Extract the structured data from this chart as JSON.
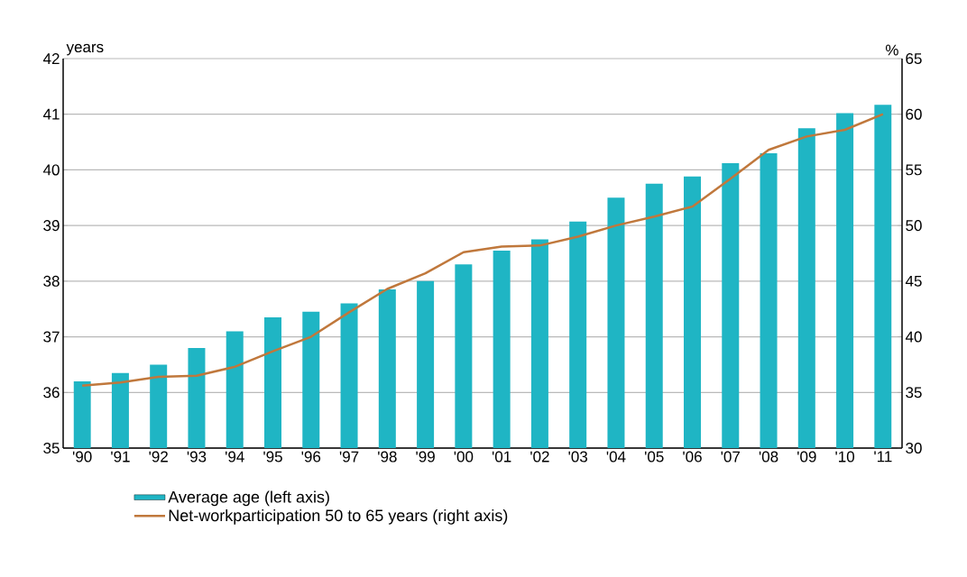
{
  "chart_data": {
    "type": "bar",
    "categories": [
      "'90",
      "'91",
      "'92",
      "'93",
      "'94",
      "'95",
      "'96",
      "'97",
      "'98",
      "'99",
      "'00",
      "'01",
      "'02",
      "'03",
      "'04",
      "'05",
      "'06",
      "'07",
      "'08",
      "'09",
      "'10",
      "'11"
    ],
    "ylabel": "years",
    "y2label": "%",
    "ylim": [
      35,
      42
    ],
    "yticks": [
      35,
      36,
      37,
      38,
      39,
      40,
      41,
      42
    ],
    "y2lim": [
      30,
      65
    ],
    "y2ticks": [
      30,
      35,
      40,
      45,
      50,
      55,
      60,
      65
    ],
    "grid": "y",
    "legend": "bottom",
    "series": [
      {
        "name": "Average age (left axis)",
        "color": "#1fb5c4",
        "values": [
          36.2,
          36.35,
          36.5,
          36.8,
          37.1,
          37.35,
          37.45,
          37.6,
          37.85,
          38.0,
          38.3,
          38.55,
          38.75,
          39.07,
          39.5,
          39.75,
          39.88,
          40.12,
          40.3,
          40.75,
          41.02,
          41.17
        ]
      },
      {
        "name": "Net-workparticipation 50 to 65 years (right axis)",
        "type": "line",
        "axis": "y2",
        "color": "#c0783c",
        "values": [
          35.6,
          35.9,
          36.4,
          36.5,
          37.3,
          38.7,
          40.0,
          42.2,
          44.3,
          45.7,
          47.6,
          48.1,
          48.2,
          49.0,
          50.0,
          50.8,
          51.7,
          54.2,
          56.8,
          58.0,
          58.6,
          60.0
        ]
      }
    ]
  }
}
